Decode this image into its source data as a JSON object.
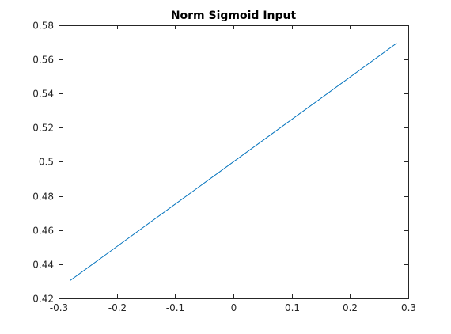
{
  "chart_data": {
    "type": "line",
    "title": "Norm Sigmoid Input",
    "xlabel": "",
    "ylabel": "",
    "xlim": [
      -0.3,
      0.3
    ],
    "ylim": [
      0.42,
      0.58
    ],
    "xticks": [
      -0.3,
      -0.2,
      -0.1,
      0,
      0.1,
      0.2,
      0.3
    ],
    "xtick_labels": [
      "-0.3",
      "-0.2",
      "-0.1",
      "0",
      "0.1",
      "0.2",
      "0.3"
    ],
    "yticks": [
      0.42,
      0.44,
      0.46,
      0.48,
      0.5,
      0.52,
      0.54,
      0.56,
      0.58
    ],
    "ytick_labels": [
      "0.42",
      "0.44",
      "0.46",
      "0.48",
      "0.5",
      "0.52",
      "0.54",
      "0.56",
      "0.58"
    ],
    "grid": false,
    "series": [
      {
        "color": "#0072BD",
        "x": [
          -0.28,
          0.28
        ],
        "y": [
          0.4305,
          0.5695
        ]
      }
    ]
  }
}
